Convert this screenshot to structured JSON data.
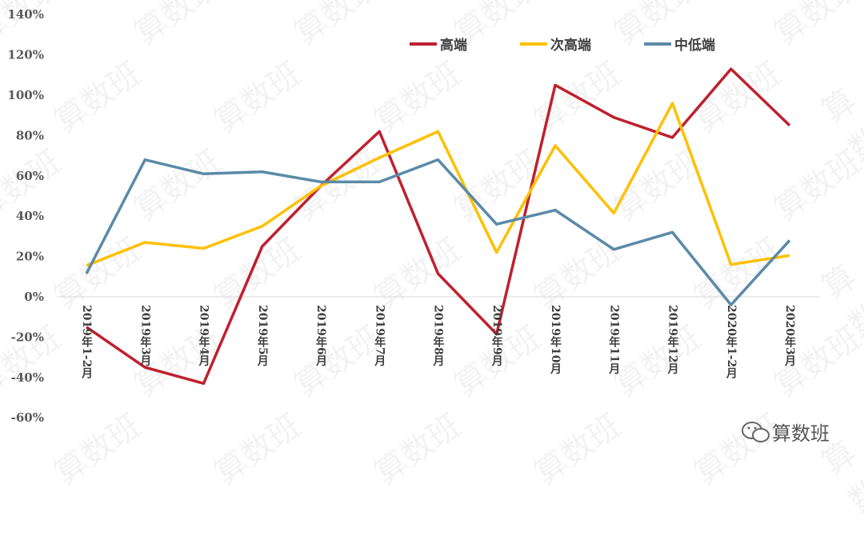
{
  "chart_data": {
    "type": "line",
    "title": "",
    "xlabel": "",
    "ylabel": "",
    "ylim": [
      -0.6,
      1.4
    ],
    "yticks": [
      "-60%",
      "-40%",
      "-20%",
      "0%",
      "20%",
      "40%",
      "60%",
      "80%",
      "100%",
      "120%",
      "140%"
    ],
    "grid": false,
    "legend_position": "top",
    "categories": [
      "2019年1-2月",
      "2019年3月",
      "2019年4月",
      "2019年5月",
      "2019年6月",
      "2019年7月",
      "2019年8月",
      "2019年9月",
      "2019年10月",
      "2019年11月",
      "2019年12月",
      "2020年1-2月",
      "2020年3月"
    ],
    "series": [
      {
        "name": "高端",
        "color": "#c0202e",
        "values": [
          -0.15,
          -0.35,
          -0.43,
          0.25,
          0.55,
          0.82,
          0.115,
          -0.185,
          1.05,
          0.89,
          0.79,
          1.13,
          0.85
        ]
      },
      {
        "name": "次高端",
        "color": "#ffc000",
        "values": [
          0.155,
          0.27,
          0.24,
          0.35,
          0.55,
          0.69,
          0.82,
          0.22,
          0.75,
          0.415,
          0.96,
          0.16,
          0.205
        ]
      },
      {
        "name": "中低端",
        "color": "#5b8aa8",
        "values": [
          0.115,
          0.68,
          0.61,
          0.62,
          0.57,
          0.57,
          0.68,
          0.36,
          0.43,
          0.235,
          0.32,
          -0.04,
          0.28
        ]
      }
    ]
  },
  "watermark": "算数班",
  "logo": {
    "text": "算数班",
    "icon": "wechat-icon"
  }
}
